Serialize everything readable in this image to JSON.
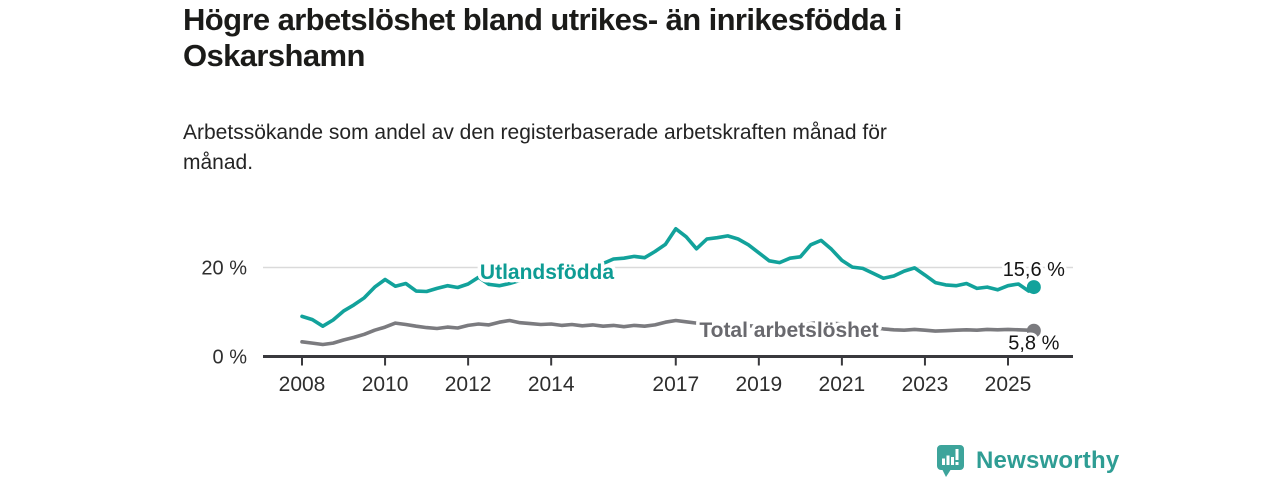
{
  "header": {
    "title_lines": [
      "Högre arbetslöshet bland utrikes- än inrikesfödda i",
      "Oskarshamn"
    ],
    "subtitle_lines": [
      "Arbetssökande som andel av den registerbaserade arbetskraften månad för",
      "månad."
    ]
  },
  "footer": {
    "brand": "Newsworthy",
    "logo_icon": "bar-chart-speech-bubble-icon"
  },
  "colors": {
    "foreign_line": "#12a29b",
    "foreign_label": "#0e9c94",
    "total_line": "#7b7b7f",
    "total_label": "#69696e",
    "grid": "#dadada",
    "axis": "#39393d",
    "tick_text": "#2e2e2e",
    "end_label_text": "#141414",
    "brand": "#2f9d94",
    "brand_icon": "#3da49b"
  },
  "chart_data": {
    "type": "line",
    "title": "Högre arbetslöshet bland utrikes- än inrikesfödda i Oskarshamn",
    "subtitle": "Arbetssökande som andel av den registerbaserade arbetskraften månad för månad.",
    "xlabel": "",
    "ylabel": "",
    "grid": "horizontal, only at 20 %",
    "legend_position": "inline labels on lines",
    "ylim": [
      0,
      30
    ],
    "xlim": [
      2007.1,
      2026.6
    ],
    "y_ticks": [
      {
        "value": 0,
        "label": "0 %"
      },
      {
        "value": 20,
        "label": "20 %"
      }
    ],
    "x_ticks": [
      {
        "value": 2008,
        "label": "2008"
      },
      {
        "value": 2010,
        "label": "2010"
      },
      {
        "value": 2012,
        "label": "2012"
      },
      {
        "value": 2014,
        "label": "2014"
      },
      {
        "value": 2017,
        "label": "2017"
      },
      {
        "value": 2019,
        "label": "2019"
      },
      {
        "value": 2021,
        "label": "2021"
      },
      {
        "value": 2023,
        "label": "2023"
      },
      {
        "value": 2025,
        "label": "2025"
      }
    ],
    "x": [
      2008,
      2008.25,
      2008.5,
      2008.75,
      2009,
      2009.25,
      2009.5,
      2009.75,
      2010,
      2010.25,
      2010.5,
      2010.75,
      2011,
      2011.25,
      2011.5,
      2011.75,
      2012,
      2012.25,
      2012.5,
      2012.75,
      2013,
      2013.25,
      2013.5,
      2013.75,
      2014,
      2014.25,
      2014.5,
      2014.75,
      2015,
      2015.25,
      2015.5,
      2015.75,
      2016,
      2016.25,
      2016.5,
      2016.75,
      2017,
      2017.25,
      2017.5,
      2017.75,
      2018,
      2018.25,
      2018.5,
      2018.75,
      2019,
      2019.25,
      2019.5,
      2019.75,
      2020,
      2020.25,
      2020.5,
      2020.75,
      2021,
      2021.25,
      2021.5,
      2021.75,
      2022,
      2022.25,
      2022.5,
      2022.75,
      2023,
      2023.25,
      2023.5,
      2023.75,
      2024,
      2024.25,
      2024.5,
      2024.75,
      2025,
      2025.25,
      2025.5,
      2025.67
    ],
    "series": [
      {
        "name": "Utlandsfödda",
        "color": "#12a29b",
        "label_color": "#0e9c94",
        "end_label": "15,6 %",
        "end_value": 15.6,
        "values": [
          9.0,
          8.3,
          6.8,
          8.2,
          10.2,
          11.6,
          13.2,
          15.6,
          17.3,
          15.8,
          16.4,
          14.7,
          14.6,
          15.3,
          15.9,
          15.5,
          16.3,
          17.8,
          16.2,
          15.9,
          16.4,
          17.1,
          17.4,
          17.1,
          17.5,
          17.3,
          18.0,
          19.0,
          19.9,
          20.9,
          21.9,
          22.1,
          22.5,
          22.2,
          23.6,
          25.2,
          28.7,
          26.9,
          24.2,
          26.4,
          26.7,
          27.1,
          26.4,
          25.1,
          23.3,
          21.5,
          21.1,
          22.1,
          22.4,
          25.1,
          26.1,
          24.1,
          21.6,
          20.1,
          19.8,
          18.7,
          17.6,
          18.1,
          19.2,
          19.9,
          18.3,
          16.6,
          16.1,
          15.9,
          16.4,
          15.3,
          15.6,
          15.0,
          15.9,
          16.3,
          14.7,
          15.6
        ]
      },
      {
        "name": "Total arbetslöshet",
        "color": "#7b7b7f",
        "label_color": "#69696e",
        "end_label": "5,8 %",
        "end_value": 5.8,
        "values": [
          3.3,
          3.0,
          2.7,
          3.0,
          3.7,
          4.3,
          5.0,
          5.9,
          6.6,
          7.5,
          7.2,
          6.8,
          6.5,
          6.3,
          6.6,
          6.4,
          7.0,
          7.3,
          7.1,
          7.7,
          8.1,
          7.6,
          7.4,
          7.2,
          7.3,
          7.0,
          7.2,
          6.9,
          7.1,
          6.8,
          7.0,
          6.7,
          7.0,
          6.8,
          7.1,
          7.7,
          8.1,
          7.8,
          7.5,
          7.3,
          7.2,
          7.1,
          7.0,
          6.9,
          6.8,
          6.7,
          6.7,
          6.8,
          7.0,
          7.4,
          7.8,
          7.5,
          7.3,
          7.0,
          6.8,
          6.5,
          6.2,
          6.0,
          5.9,
          6.1,
          5.9,
          5.7,
          5.8,
          5.9,
          6.0,
          5.9,
          6.1,
          6.0,
          6.1,
          6.0,
          5.9,
          5.8
        ]
      }
    ]
  }
}
